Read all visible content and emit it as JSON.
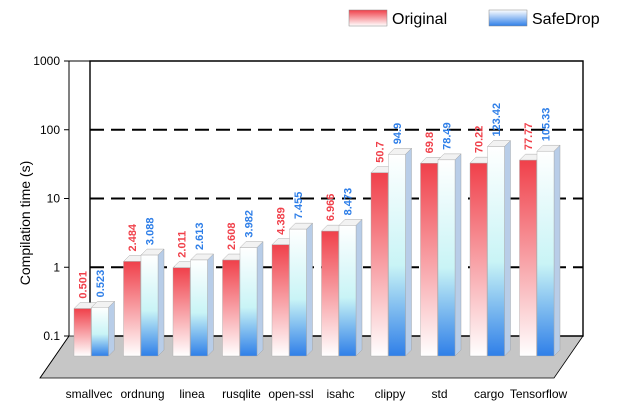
{
  "chart_data": {
    "type": "bar",
    "ylabel": "Compilation time (s)",
    "xlabel": "",
    "yscale": "log",
    "ylim": [
      0.1,
      1000
    ],
    "yticks": [
      "0.1",
      "1",
      "10",
      "100",
      "1000"
    ],
    "grid": "dashed horizontal lines",
    "legend_position": "top-right",
    "categories": [
      "smallvec",
      "ordnung",
      "linea",
      "rusqlite",
      "open-ssl",
      "isahc",
      "clippy",
      "std",
      "cargo",
      "Tensorflow"
    ],
    "series": [
      {
        "name": "Original",
        "color": "#f0404a",
        "values": [
          0.501,
          2.484,
          2.011,
          2.608,
          4.389,
          6.966,
          50.7,
          69.8,
          70.22,
          77.77
        ],
        "labels": [
          "0.501",
          "2.484",
          "2.011",
          "2.608",
          "4.389",
          "6.966",
          "50.7",
          "69.8",
          "70.22",
          "77.77"
        ]
      },
      {
        "name": "SafeDrop",
        "color": "#2f7fe8",
        "values": [
          0.523,
          3.088,
          2.613,
          3.982,
          7.455,
          8.473,
          94.9,
          78.49,
          123.42,
          105.33
        ],
        "labels": [
          "0.523",
          "3.088",
          "2.613",
          "3.982",
          "7.455",
          "8.473",
          "94.9",
          "78.49",
          "123.42",
          "105.33"
        ]
      }
    ]
  }
}
